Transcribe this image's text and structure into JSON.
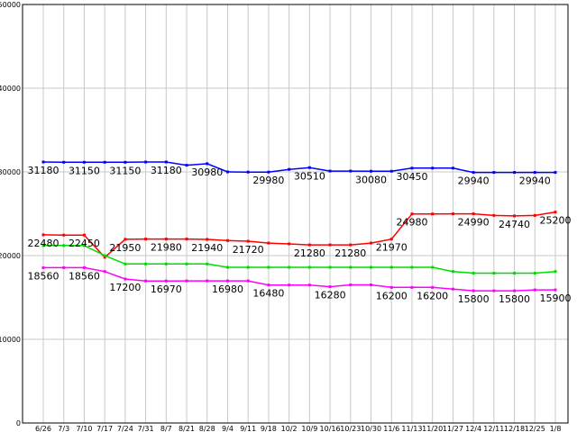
{
  "chart_data": {
    "type": "line",
    "title": "",
    "xlabel": "",
    "ylabel": "",
    "ylim": [
      0,
      50000
    ],
    "yticks": [
      0,
      10000,
      20000,
      30000,
      40000,
      50000
    ],
    "grid": true,
    "legend": "none",
    "categories": [
      "6/26",
      "7/3",
      "7/10",
      "7/17",
      "7/24",
      "7/31",
      "8/7",
      "8/21",
      "8/28",
      "9/4",
      "9/11",
      "9/18",
      "10/2",
      "10/9",
      "10/16",
      "10/23",
      "10/30",
      "11/6",
      "11/13",
      "11/20",
      "11/27",
      "12/4",
      "12/11",
      "12/18",
      "12/25",
      "1/8"
    ],
    "series": [
      {
        "color": "#0000ff",
        "values": [
          31180,
          31150,
          31150,
          31150,
          31150,
          31180,
          31180,
          30800,
          30980,
          30000,
          29980,
          29980,
          30300,
          30510,
          30100,
          30100,
          30080,
          30080,
          30450,
          30450,
          30450,
          29940,
          29940,
          29940,
          29940,
          29940
        ],
        "labels": [
          {
            "i": 0,
            "text": "31180"
          },
          {
            "i": 2,
            "text": "31150"
          },
          {
            "i": 4,
            "text": "31150"
          },
          {
            "i": 6,
            "text": "31180"
          },
          {
            "i": 8,
            "text": "30980"
          },
          {
            "i": 11,
            "text": "29980"
          },
          {
            "i": 13,
            "text": "30510"
          },
          {
            "i": 16,
            "text": "30080"
          },
          {
            "i": 18,
            "text": "30450"
          },
          {
            "i": 21,
            "text": "29940"
          },
          {
            "i": 24,
            "text": "29940"
          }
        ]
      },
      {
        "color": "#ff0000",
        "values": [
          22480,
          22450,
          22450,
          19800,
          21950,
          21980,
          21980,
          21980,
          21940,
          21800,
          21720,
          21500,
          21400,
          21280,
          21280,
          21280,
          21500,
          21970,
          24980,
          24980,
          24990,
          24990,
          24800,
          24740,
          24800,
          25200
        ],
        "labels": [
          {
            "i": 0,
            "text": "22480"
          },
          {
            "i": 2,
            "text": "22450"
          },
          {
            "i": 4,
            "text": "21950"
          },
          {
            "i": 6,
            "text": "21980"
          },
          {
            "i": 8,
            "text": "21940"
          },
          {
            "i": 10,
            "text": "21720"
          },
          {
            "i": 13,
            "text": "21280"
          },
          {
            "i": 15,
            "text": "21280"
          },
          {
            "i": 17,
            "text": "21970"
          },
          {
            "i": 18,
            "text": "24980"
          },
          {
            "i": 21,
            "text": "24990"
          },
          {
            "i": 23,
            "text": "24740"
          },
          {
            "i": 25,
            "text": "25200"
          }
        ]
      },
      {
        "color": "#00dd00",
        "values": [
          21200,
          21200,
          21200,
          20000,
          19000,
          19000,
          19000,
          19000,
          19000,
          18600,
          18600,
          18600,
          18600,
          18600,
          18600,
          18600,
          18600,
          18600,
          18600,
          18600,
          18100,
          17900,
          17900,
          17900,
          17900,
          18100
        ],
        "labels": []
      },
      {
        "color": "#ff00ff",
        "values": [
          18560,
          18560,
          18560,
          18100,
          17200,
          16970,
          16970,
          16980,
          16980,
          16980,
          16980,
          16480,
          16480,
          16480,
          16280,
          16500,
          16500,
          16200,
          16200,
          16200,
          16000,
          15800,
          15800,
          15800,
          15900,
          15900
        ],
        "labels": [
          {
            "i": 0,
            "text": "18560"
          },
          {
            "i": 2,
            "text": "18560"
          },
          {
            "i": 4,
            "text": "17200"
          },
          {
            "i": 6,
            "text": "16970"
          },
          {
            "i": 9,
            "text": "16980"
          },
          {
            "i": 11,
            "text": "16480"
          },
          {
            "i": 14,
            "text": "16280"
          },
          {
            "i": 17,
            "text": "16200"
          },
          {
            "i": 19,
            "text": "16200"
          },
          {
            "i": 21,
            "text": "15800"
          },
          {
            "i": 23,
            "text": "15800"
          },
          {
            "i": 25,
            "text": "15900"
          }
        ]
      }
    ]
  }
}
